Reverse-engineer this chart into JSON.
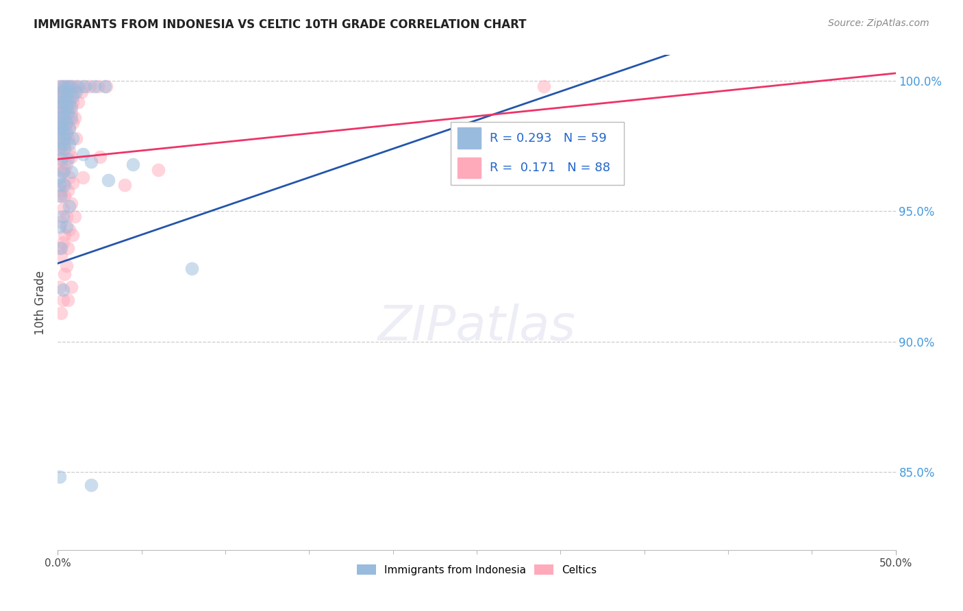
{
  "title": "IMMIGRANTS FROM INDONESIA VS CELTIC 10TH GRADE CORRELATION CHART",
  "source_text": "Source: ZipAtlas.com",
  "ylabel_label": "10th Grade",
  "legend_blue_label": "Immigrants from Indonesia",
  "legend_pink_label": "Celtics",
  "R_blue": 0.293,
  "N_blue": 59,
  "R_pink": 0.171,
  "N_pink": 88,
  "color_blue": "#99BBDD",
  "color_pink": "#FFAABB",
  "line_blue": "#2255AA",
  "line_pink": "#EE3366",
  "x_min": 0.0,
  "x_max": 0.5,
  "y_min": 0.82,
  "y_max": 1.01,
  "yticks": [
    1.0,
    0.95,
    0.9,
    0.85
  ],
  "ytick_labels": [
    "100.0%",
    "95.0%",
    "90.0%",
    "85.0%"
  ],
  "blue_line": [
    0.0,
    0.93,
    0.5,
    1.04
  ],
  "pink_line": [
    0.0,
    0.97,
    0.5,
    1.003
  ],
  "blue_points": [
    [
      0.002,
      0.998
    ],
    [
      0.004,
      0.998
    ],
    [
      0.006,
      0.998
    ],
    [
      0.008,
      0.998
    ],
    [
      0.012,
      0.998
    ],
    [
      0.016,
      0.998
    ],
    [
      0.022,
      0.998
    ],
    [
      0.028,
      0.998
    ],
    [
      0.003,
      0.996
    ],
    [
      0.007,
      0.996
    ],
    [
      0.011,
      0.996
    ],
    [
      0.002,
      0.994
    ],
    [
      0.005,
      0.994
    ],
    [
      0.009,
      0.994
    ],
    [
      0.001,
      0.992
    ],
    [
      0.004,
      0.992
    ],
    [
      0.007,
      0.992
    ],
    [
      0.002,
      0.99
    ],
    [
      0.005,
      0.99
    ],
    [
      0.008,
      0.99
    ],
    [
      0.003,
      0.988
    ],
    [
      0.006,
      0.988
    ],
    [
      0.001,
      0.986
    ],
    [
      0.004,
      0.986
    ],
    [
      0.008,
      0.986
    ],
    [
      0.002,
      0.984
    ],
    [
      0.005,
      0.984
    ],
    [
      0.001,
      0.982
    ],
    [
      0.003,
      0.982
    ],
    [
      0.007,
      0.982
    ],
    [
      0.002,
      0.98
    ],
    [
      0.005,
      0.98
    ],
    [
      0.001,
      0.978
    ],
    [
      0.004,
      0.978
    ],
    [
      0.009,
      0.978
    ],
    [
      0.003,
      0.976
    ],
    [
      0.007,
      0.976
    ],
    [
      0.001,
      0.974
    ],
    [
      0.004,
      0.974
    ],
    [
      0.015,
      0.972
    ],
    [
      0.002,
      0.97
    ],
    [
      0.006,
      0.97
    ],
    [
      0.02,
      0.969
    ],
    [
      0.045,
      0.968
    ],
    [
      0.003,
      0.965
    ],
    [
      0.008,
      0.965
    ],
    [
      0.001,
      0.963
    ],
    [
      0.03,
      0.962
    ],
    [
      0.001,
      0.96
    ],
    [
      0.004,
      0.96
    ],
    [
      0.002,
      0.956
    ],
    [
      0.007,
      0.952
    ],
    [
      0.003,
      0.948
    ],
    [
      0.001,
      0.944
    ],
    [
      0.005,
      0.944
    ],
    [
      0.002,
      0.936
    ],
    [
      0.08,
      0.928
    ],
    [
      0.003,
      0.92
    ],
    [
      0.001,
      0.848
    ],
    [
      0.02,
      0.845
    ]
  ],
  "pink_points": [
    [
      0.001,
      0.998
    ],
    [
      0.003,
      0.998
    ],
    [
      0.005,
      0.998
    ],
    [
      0.007,
      0.998
    ],
    [
      0.009,
      0.998
    ],
    [
      0.011,
      0.998
    ],
    [
      0.015,
      0.998
    ],
    [
      0.019,
      0.998
    ],
    [
      0.024,
      0.998
    ],
    [
      0.029,
      0.998
    ],
    [
      0.002,
      0.996
    ],
    [
      0.004,
      0.996
    ],
    [
      0.006,
      0.996
    ],
    [
      0.01,
      0.996
    ],
    [
      0.014,
      0.996
    ],
    [
      0.001,
      0.994
    ],
    [
      0.003,
      0.994
    ],
    [
      0.005,
      0.994
    ],
    [
      0.008,
      0.994
    ],
    [
      0.002,
      0.992
    ],
    [
      0.004,
      0.992
    ],
    [
      0.006,
      0.992
    ],
    [
      0.009,
      0.992
    ],
    [
      0.012,
      0.992
    ],
    [
      0.001,
      0.99
    ],
    [
      0.003,
      0.99
    ],
    [
      0.005,
      0.99
    ],
    [
      0.007,
      0.99
    ],
    [
      0.002,
      0.988
    ],
    [
      0.004,
      0.988
    ],
    [
      0.008,
      0.988
    ],
    [
      0.001,
      0.986
    ],
    [
      0.003,
      0.986
    ],
    [
      0.006,
      0.986
    ],
    [
      0.01,
      0.986
    ],
    [
      0.002,
      0.984
    ],
    [
      0.005,
      0.984
    ],
    [
      0.009,
      0.984
    ],
    [
      0.001,
      0.982
    ],
    [
      0.004,
      0.982
    ],
    [
      0.007,
      0.982
    ],
    [
      0.002,
      0.98
    ],
    [
      0.005,
      0.98
    ],
    [
      0.003,
      0.978
    ],
    [
      0.006,
      0.978
    ],
    [
      0.011,
      0.978
    ],
    [
      0.001,
      0.975
    ],
    [
      0.004,
      0.975
    ],
    [
      0.002,
      0.973
    ],
    [
      0.007,
      0.973
    ],
    [
      0.003,
      0.971
    ],
    [
      0.008,
      0.971
    ],
    [
      0.025,
      0.971
    ],
    [
      0.002,
      0.968
    ],
    [
      0.005,
      0.968
    ],
    [
      0.001,
      0.966
    ],
    [
      0.004,
      0.966
    ],
    [
      0.06,
      0.966
    ],
    [
      0.007,
      0.963
    ],
    [
      0.015,
      0.963
    ],
    [
      0.003,
      0.961
    ],
    [
      0.009,
      0.961
    ],
    [
      0.04,
      0.96
    ],
    [
      0.002,
      0.958
    ],
    [
      0.006,
      0.958
    ],
    [
      0.001,
      0.956
    ],
    [
      0.004,
      0.956
    ],
    [
      0.008,
      0.953
    ],
    [
      0.003,
      0.951
    ],
    [
      0.005,
      0.948
    ],
    [
      0.01,
      0.948
    ],
    [
      0.002,
      0.946
    ],
    [
      0.007,
      0.943
    ],
    [
      0.004,
      0.941
    ],
    [
      0.009,
      0.941
    ],
    [
      0.003,
      0.938
    ],
    [
      0.001,
      0.936
    ],
    [
      0.006,
      0.936
    ],
    [
      0.002,
      0.933
    ],
    [
      0.005,
      0.929
    ],
    [
      0.004,
      0.926
    ],
    [
      0.001,
      0.921
    ],
    [
      0.008,
      0.921
    ],
    [
      0.003,
      0.916
    ],
    [
      0.006,
      0.916
    ],
    [
      0.002,
      0.911
    ],
    [
      0.29,
      0.998
    ]
  ]
}
